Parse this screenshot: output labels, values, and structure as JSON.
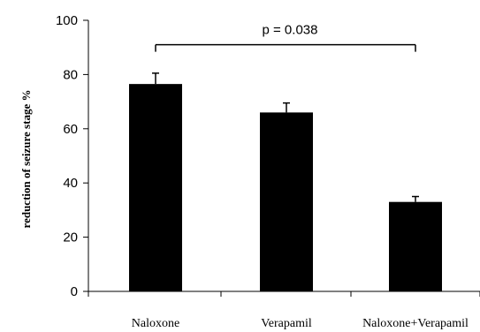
{
  "chart_data": {
    "type": "bar",
    "categories": [
      "Naloxone",
      "Verapamil",
      "Naloxone+Verapamil"
    ],
    "values": [
      76.5,
      66,
      33
    ],
    "errors": [
      4,
      3.5,
      2
    ],
    "ylabel": "reduction of seizure stage %",
    "xlabel": "",
    "ylim": [
      0,
      100
    ],
    "yticks": [
      0,
      20,
      40,
      60,
      80,
      100
    ],
    "grid": false,
    "bar_color": "#000000",
    "annotation": {
      "text": "p = 0.038",
      "from_category": 0,
      "to_category": 2,
      "y": 91
    }
  }
}
